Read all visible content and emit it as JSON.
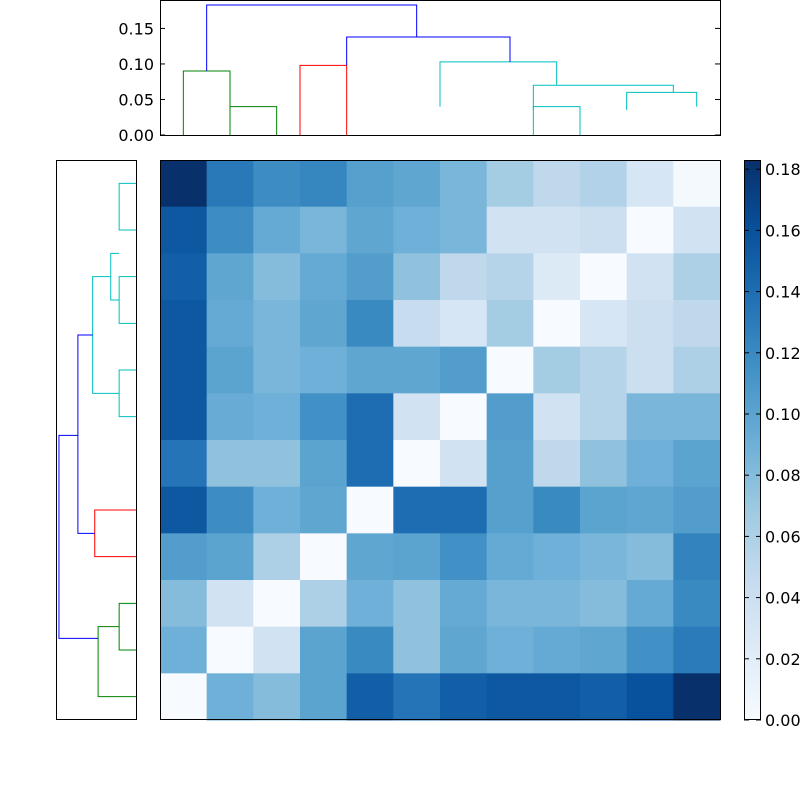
{
  "chart_data": [
    {
      "type": "dendrogram",
      "role": "column-dendrogram",
      "orientation": "top",
      "leaf_positions": [
        1,
        2,
        3,
        4,
        5,
        6,
        7,
        8,
        9,
        10,
        11,
        12
      ],
      "ylim": [
        0,
        0.19
      ],
      "yticks": [
        "0.00",
        "0.05",
        "0.10",
        "0.15"
      ],
      "links": [
        {
          "a": 1,
          "b": 2,
          "ha": 0,
          "hb": 0,
          "h": 0.09,
          "color": "#008000",
          "subs": [
            [
              2,
              0.04
            ]
          ]
        },
        {
          "a": 3.5,
          "b": 4.5,
          "ha": 0,
          "hb": 0,
          "h": 0.098,
          "color": "#ff0000",
          "subs": []
        },
        {
          "a": 6.5,
          "b": 9,
          "ha": 0.04,
          "hb": 0.07,
          "h": 0.103,
          "color": "#00bfbf",
          "subs": []
        },
        {
          "a": 8.5,
          "b": 9.5,
          "ha": 0,
          "hb": 0,
          "h": 0.04,
          "color": "#00bfbf",
          "subs": []
        },
        {
          "a": 8.5,
          "b": 11.5,
          "ha": 0.035,
          "hb": 0.06,
          "h": 0.07,
          "color": "#00bfbf",
          "subs": []
        },
        {
          "a": 10.5,
          "b": 12,
          "ha": 0.035,
          "hb": 0.04,
          "h": 0.06,
          "color": "#00bfbf",
          "subs": []
        },
        {
          "a": 4.5,
          "b": 8,
          "ha": 0.098,
          "hb": 0.103,
          "h": 0.138,
          "color": "#0000ff",
          "subs": []
        },
        {
          "a": 1.5,
          "b": 6,
          "ha": 0.09,
          "hb": 0.138,
          "h": 0.183,
          "color": "#0000ff",
          "subs": []
        }
      ]
    },
    {
      "type": "dendrogram",
      "role": "row-dendrogram",
      "orientation": "left",
      "xlim": [
        0,
        0.19
      ],
      "links": [
        {
          "a": 10,
          "b": 11,
          "ha": 0,
          "hb": 0,
          "h": 0.04,
          "color": "#008000"
        },
        {
          "a": 10.5,
          "b": 12,
          "ha": 0.04,
          "hb": 0,
          "h": 0.09,
          "color": "#008000"
        },
        {
          "a": 8,
          "b": 9,
          "ha": 0,
          "hb": 0,
          "h": 0.098,
          "color": "#ff0000"
        },
        {
          "a": 1,
          "b": 2,
          "ha": 0,
          "hb": 0,
          "h": 0.04,
          "color": "#00bfbf"
        },
        {
          "a": 3,
          "b": 4,
          "ha": 0,
          "hb": 0,
          "h": 0.04,
          "color": "#00bfbf"
        },
        {
          "a": 2.5,
          "b": 3.5,
          "ha": 0.04,
          "hb": 0.04,
          "h": 0.06,
          "color": "#00bfbf"
        },
        {
          "a": 5,
          "b": 6,
          "ha": 0,
          "hb": 0,
          "h": 0.04,
          "color": "#00bfbf"
        },
        {
          "a": 3,
          "b": 5.5,
          "ha": 0.06,
          "hb": 0.04,
          "h": 0.103,
          "color": "#00bfbf"
        },
        {
          "a": 4.25,
          "b": 8.5,
          "ha": 0.103,
          "hb": 0.098,
          "h": 0.138,
          "color": "#0000ff"
        },
        {
          "a": 6.4,
          "b": 10.75,
          "ha": 0.138,
          "hb": 0.09,
          "h": 0.183,
          "color": "#0000ff"
        }
      ]
    },
    {
      "type": "heatmap",
      "colormap": "Blues",
      "vmin": 0,
      "vmax": 0.183,
      "colorbar_ticks": [
        "0.00",
        "0.02",
        "0.04",
        "0.06",
        "0.08",
        "0.10",
        "0.12",
        "0.14",
        "0.16",
        "0.18"
      ],
      "values": [
        [
          0.183,
          0.132,
          0.118,
          0.123,
          0.103,
          0.098,
          0.085,
          0.065,
          0.05,
          0.058,
          0.03,
          0.003
        ],
        [
          0.155,
          0.118,
          0.095,
          0.085,
          0.098,
          0.09,
          0.085,
          0.035,
          0.035,
          0.04,
          0.0,
          0.035
        ],
        [
          0.15,
          0.098,
          0.08,
          0.095,
          0.105,
          0.075,
          0.05,
          0.055,
          0.025,
          0.0,
          0.035,
          0.06
        ],
        [
          0.155,
          0.095,
          0.085,
          0.098,
          0.12,
          0.045,
          0.03,
          0.065,
          0.0,
          0.03,
          0.04,
          0.05
        ],
        [
          0.155,
          0.1,
          0.085,
          0.09,
          0.098,
          0.098,
          0.105,
          0.0,
          0.065,
          0.055,
          0.04,
          0.06
        ],
        [
          0.155,
          0.093,
          0.09,
          0.115,
          0.14,
          0.035,
          0.0,
          0.105,
          0.035,
          0.055,
          0.085,
          0.085
        ],
        [
          0.135,
          0.075,
          0.075,
          0.1,
          0.14,
          0.0,
          0.035,
          0.103,
          0.05,
          0.075,
          0.09,
          0.1
        ],
        [
          0.155,
          0.118,
          0.09,
          0.098,
          0.0,
          0.14,
          0.14,
          0.103,
          0.12,
          0.1,
          0.098,
          0.105
        ],
        [
          0.105,
          0.1,
          0.06,
          0.0,
          0.098,
          0.1,
          0.115,
          0.095,
          0.09,
          0.085,
          0.08,
          0.125
        ],
        [
          0.08,
          0.035,
          0.0,
          0.06,
          0.09,
          0.075,
          0.095,
          0.085,
          0.085,
          0.08,
          0.095,
          0.12
        ],
        [
          0.09,
          0.0,
          0.035,
          0.1,
          0.12,
          0.075,
          0.098,
          0.09,
          0.095,
          0.098,
          0.115,
          0.13
        ],
        [
          0.0,
          0.09,
          0.08,
          0.1,
          0.15,
          0.135,
          0.15,
          0.155,
          0.155,
          0.15,
          0.16,
          0.183
        ]
      ]
    }
  ]
}
